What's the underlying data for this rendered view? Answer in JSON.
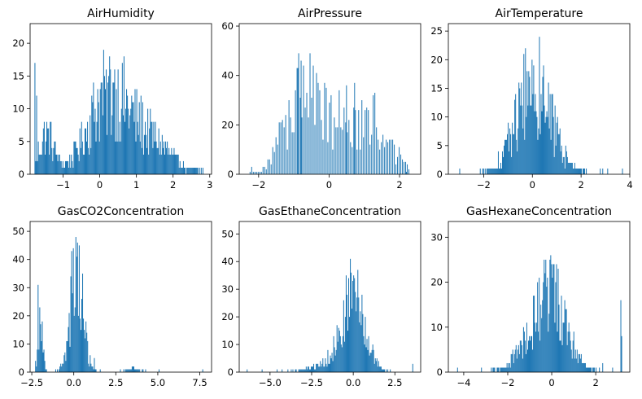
{
  "figure": {
    "bar_color": "#1f77b4"
  },
  "chart_data": [
    {
      "type": "histogram",
      "title": "AirHumidity",
      "xlabel": "",
      "ylabel": "",
      "xlim": [
        -1.9,
        3.05
      ],
      "ylim": [
        0,
        23
      ],
      "xticks": [
        -1,
        0,
        1,
        2,
        3
      ],
      "xtick_labels": [
        "−1",
        "0",
        "1",
        "2",
        "3"
      ],
      "yticks": [
        0,
        5,
        10,
        15,
        20
      ],
      "ytick_labels": [
        "0",
        "5",
        "10",
        "15",
        "20"
      ],
      "data_range": [
        -1.78,
        2.85
      ],
      "bins": 200,
      "shape": {
        "components": [
          {
            "mu": -1.45,
            "sigma": 0.22,
            "w": 0.5
          },
          {
            "mu": 0.2,
            "sigma": 0.55,
            "w": 1.0
          },
          {
            "mu": 1.3,
            "sigma": 0.6,
            "w": 0.45
          }
        ],
        "peak": 14,
        "spikes": [
          [
            -1.76,
            17
          ],
          [
            -1.72,
            12
          ],
          [
            0.17,
            16
          ],
          [
            0.38,
            14
          ],
          [
            2.5,
            1
          ],
          [
            2.72,
            1
          ],
          [
            2.82,
            1
          ]
        ]
      }
    },
    {
      "type": "histogram",
      "title": "AirPressure",
      "xlabel": "",
      "ylabel": "",
      "xlim": [
        -2.55,
        2.6
      ],
      "ylim": [
        0,
        61
      ],
      "xticks": [
        -2,
        0,
        2
      ],
      "xtick_labels": [
        "−2",
        "0",
        "2"
      ],
      "yticks": [
        0,
        20,
        40,
        60
      ],
      "ytick_labels": [
        "0",
        "20",
        "40",
        "60"
      ],
      "data_range": [
        -2.3,
        2.3
      ],
      "bins": 200,
      "shape": {
        "components": [
          {
            "mu": -0.85,
            "sigma": 0.45,
            "w": 1.0
          },
          {
            "mu": 0.4,
            "sigma": 0.6,
            "w": 0.75
          },
          {
            "mu": 1.5,
            "sigma": 0.4,
            "w": 0.45
          }
        ],
        "peak": 38,
        "sparse_every": 2,
        "spikes": [
          [
            -0.8,
            46
          ],
          [
            -0.72,
            44
          ],
          [
            -0.88,
            43
          ],
          [
            -0.3,
            37
          ],
          [
            0.5,
            36
          ],
          [
            0.72,
            37
          ],
          [
            1.3,
            33
          ],
          [
            -2.2,
            3
          ],
          [
            2.2,
            1
          ]
        ]
      }
    },
    {
      "type": "histogram",
      "title": "AirTemperature",
      "xlabel": "",
      "ylabel": "",
      "xlim": [
        -3.45,
        4.0
      ],
      "ylim": [
        0,
        26.3
      ],
      "xticks": [
        -2,
        0,
        2,
        4
      ],
      "xtick_labels": [
        "−2",
        "0",
        "2",
        "4"
      ],
      "yticks": [
        0,
        5,
        10,
        15,
        20,
        25
      ],
      "ytick_labels": [
        "0",
        "5",
        "10",
        "15",
        "20",
        "25"
      ],
      "data_range": [
        -3.0,
        3.75
      ],
      "bins": 200,
      "shape": {
        "components": [
          {
            "mu": 0.05,
            "sigma": 0.75,
            "w": 1.0
          }
        ],
        "peak": 17,
        "spikes": [
          [
            0.3,
            24
          ],
          [
            0.0,
            20
          ],
          [
            0.45,
            19
          ],
          [
            -0.15,
            18
          ],
          [
            -3.0,
            1
          ],
          [
            3.7,
            1
          ],
          [
            2.9,
            1
          ],
          [
            3.1,
            1
          ]
        ]
      }
    },
    {
      "type": "histogram",
      "title": "GasCO2Concentration",
      "xlabel": "",
      "ylabel": "",
      "xlim": [
        -2.6,
        8.2
      ],
      "ylim": [
        0,
        53.5
      ],
      "xticks": [
        -2.5,
        0,
        2.5,
        5,
        7.5
      ],
      "xtick_labels": [
        "−2.5",
        "0.0",
        "2.5",
        "5.0",
        "7.5"
      ],
      "yticks": [
        0,
        10,
        20,
        30,
        40,
        50
      ],
      "ytick_labels": [
        "0",
        "10",
        "20",
        "30",
        "40",
        "50"
      ],
      "data_range": [
        -2.3,
        7.7
      ],
      "bins": 200,
      "shape": {
        "components": [
          {
            "mu": -2.0,
            "sigma": 0.14,
            "w": 0.55
          },
          {
            "mu": 0.15,
            "sigma": 0.38,
            "w": 1.0
          },
          {
            "mu": 3.5,
            "sigma": 0.3,
            "w": 0.04
          }
        ],
        "peak": 40,
        "spikes": [
          [
            -2.1,
            31
          ],
          [
            0.15,
            48
          ],
          [
            0.25,
            46
          ],
          [
            -0.05,
            44
          ],
          [
            0.95,
            6
          ],
          [
            1.2,
            5
          ],
          [
            7.7,
            1
          ],
          [
            5.1,
            1
          ]
        ]
      }
    },
    {
      "type": "histogram",
      "title": "GasEthaneConcentration",
      "xlabel": "",
      "ylabel": "",
      "xlim": [
        -6.85,
        4.05
      ],
      "ylim": [
        0,
        54.5
      ],
      "xticks": [
        -5,
        -2.5,
        0,
        2.5
      ],
      "xtick_labels": [
        "−5.0",
        "−2.5",
        "0.0",
        "2.5"
      ],
      "yticks": [
        0,
        10,
        20,
        30,
        40,
        50
      ],
      "ytick_labels": [
        "0",
        "10",
        "20",
        "30",
        "40",
        "50"
      ],
      "data_range": [
        -6.4,
        3.6
      ],
      "bins": 200,
      "shape": {
        "components": [
          {
            "mu": 0.0,
            "sigma": 0.7,
            "w": 1.0
          },
          {
            "mu": -1.8,
            "sigma": 0.8,
            "w": 0.1
          }
        ],
        "peak": 30,
        "spikes": [
          [
            0.0,
            35
          ],
          [
            0.08,
            34
          ],
          [
            -0.05,
            33
          ],
          [
            -6.4,
            1
          ],
          [
            -5.5,
            1
          ],
          [
            -4.6,
            1
          ],
          [
            3.6,
            3
          ]
        ]
      }
    },
    {
      "type": "histogram",
      "title": "GasHexaneConcentration",
      "xlabel": "",
      "ylabel": "",
      "xlim": [
        -4.7,
        3.55
      ],
      "ylim": [
        0,
        33.5
      ],
      "xticks": [
        -4,
        -2,
        0,
        2
      ],
      "xtick_labels": [
        "−4",
        "−2",
        "0",
        "2"
      ],
      "yticks": [
        0,
        10,
        20,
        30
      ],
      "ytick_labels": [
        "0",
        "10",
        "20",
        "30"
      ],
      "data_range": [
        -4.3,
        3.2
      ],
      "bins": 200,
      "shape": {
        "components": [
          {
            "mu": 0.0,
            "sigma": 0.7,
            "w": 1.0
          },
          {
            "mu": -1.2,
            "sigma": 0.6,
            "w": 0.25
          }
        ],
        "peak": 20,
        "spikes": [
          [
            -0.1,
            25
          ],
          [
            0.05,
            24
          ],
          [
            0.3,
            23
          ],
          [
            -0.3,
            22
          ],
          [
            3.15,
            16
          ],
          [
            3.2,
            8
          ],
          [
            2.3,
            2
          ],
          [
            -4.3,
            1
          ],
          [
            -3.2,
            1
          ]
        ]
      }
    }
  ]
}
